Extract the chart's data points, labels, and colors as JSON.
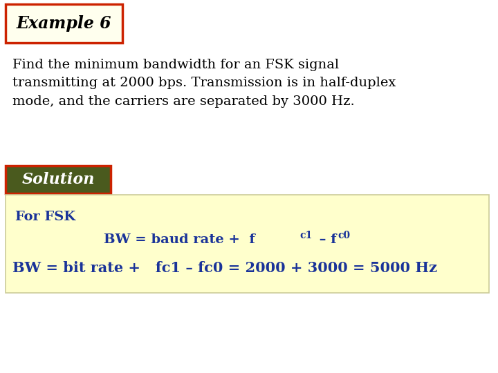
{
  "background_color": "#ffffff",
  "title_text": "Example 6",
  "title_box_facecolor": "#ffffee",
  "title_box_edgecolor": "#cc2200",
  "title_fontsize": 17,
  "title_fontstyle": "italic",
  "title_fontweight": "bold",
  "body_text": "Find the minimum bandwidth for an FSK signal\ntransmitting at 2000 bps. Transmission is in half-duplex\nmode, and the carriers are separated by 3000 Hz.",
  "body_fontsize": 14,
  "body_color": "#000000",
  "solution_text": "Solution",
  "solution_box_facecolor": "#4a5a1e",
  "solution_box_edgecolor": "#cc2200",
  "solution_fontsize": 16,
  "solution_fontstyle": "italic",
  "solution_fontweight": "bold",
  "solution_fontcolor": "#ffffff",
  "result_box_facecolor": "#ffffcc",
  "result_box_edgecolor": "#cccc99",
  "for_fsk_text": "For FSK",
  "for_fsk_fontsize": 14,
  "for_fsk_color": "#1a3399",
  "line2_main": "BW = baud rate +  f",
  "line2_sub1": "c1",
  "line2_dash": " – f",
  "line2_sub2": "c0",
  "line2_fontsize": 14,
  "line2_color": "#1a3399",
  "line3_text": "BW = bit rate +   fc1 – fc0 = 2000 + 3000 = 5000 Hz",
  "line3_fontsize": 15,
  "line3_color": "#1a3399"
}
